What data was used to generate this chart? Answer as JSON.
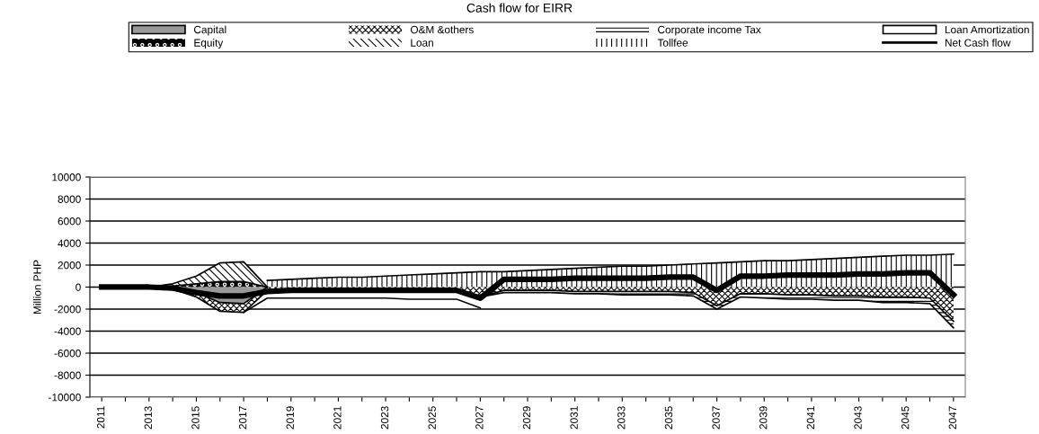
{
  "chart_data": {
    "type": "area",
    "title": "Cash flow for EIRR",
    "ylabel": "Million PHP",
    "categories": [
      "2011",
      null,
      "2013",
      null,
      "2015",
      null,
      "2017",
      null,
      "2019",
      null,
      "2021",
      null,
      "2023",
      null,
      "2025",
      null,
      "2027",
      null,
      "2029",
      null,
      "2031",
      null,
      "2033",
      null,
      "2035",
      null,
      "2037",
      null,
      "2039",
      null,
      "2041",
      null,
      "2043",
      null,
      "2045",
      null,
      "2047"
    ],
    "ylim": [
      -10000,
      10000
    ],
    "yticks": [
      -10000,
      -8000,
      -6000,
      -4000,
      -2000,
      0,
      2000,
      4000,
      6000,
      8000,
      10000
    ],
    "grid": "y",
    "legend": "top",
    "series": [
      {
        "name": "Tollfee",
        "color": "#ffffff",
        "values": [
          null,
          null,
          null,
          null,
          null,
          null,
          null,
          600,
          700,
          800,
          900,
          900,
          1000,
          1100,
          1200,
          1300,
          1400,
          1400,
          1500,
          1600,
          1700,
          1800,
          1900,
          1900,
          2000,
          2100,
          2200,
          2300,
          2400,
          2400,
          2500,
          2600,
          2700,
          2800,
          2900,
          2900,
          3000
        ]
      },
      {
        "name": "Loan",
        "color": "#ffffff",
        "values": [
          null,
          null,
          0,
          300,
          1000,
          2200,
          2300,
          0,
          null,
          null,
          null,
          null,
          null,
          null,
          null,
          null,
          null,
          null,
          null,
          null,
          null,
          null,
          null,
          null,
          null,
          null,
          null,
          null,
          null,
          null,
          null,
          null,
          null,
          null,
          null,
          null,
          null
        ]
      },
      {
        "name": "Equity",
        "color": "#000000",
        "values": [
          null,
          null,
          0,
          100,
          300,
          500,
          500,
          0,
          null,
          null,
          null,
          null,
          null,
          null,
          null,
          null,
          null,
          null,
          null,
          null,
          null,
          null,
          null,
          null,
          null,
          null,
          null,
          null,
          null,
          null,
          null,
          null,
          null,
          null,
          null,
          null,
          null
        ]
      },
      {
        "name": "Loan Amortization",
        "color": "#ffffff",
        "values": [
          null,
          null,
          null,
          null,
          null,
          null,
          -2300,
          -1000,
          -1000,
          -1000,
          -1000,
          -1000,
          -1000,
          -1100,
          -1100,
          -1100,
          -1900,
          null,
          null,
          null,
          null,
          null,
          null,
          null,
          null,
          null,
          null,
          null,
          null,
          null,
          null,
          null,
          null,
          null,
          null,
          null,
          null
        ]
      },
      {
        "name": "Corporate income Tax",
        "color": "#ffffff",
        "values": [
          null,
          null,
          null,
          null,
          null,
          null,
          null,
          null,
          null,
          null,
          null,
          null,
          null,
          null,
          null,
          null,
          -900,
          -500,
          -500,
          -500,
          -600,
          -600,
          -700,
          -700,
          -700,
          -800,
          -2000,
          -900,
          -1000,
          -1100,
          -1100,
          -1200,
          -1200,
          -1400,
          -1400,
          -1500,
          -3700
        ]
      },
      {
        "name": "O&M &others",
        "color": "#ffffff",
        "values": [
          0,
          0,
          0,
          -200,
          -900,
          -2200,
          -2300,
          -300,
          -300,
          -300,
          -300,
          -300,
          -300,
          -300,
          -300,
          -300,
          -900,
          -300,
          -300,
          -300,
          -400,
          -400,
          -400,
          -400,
          -400,
          -500,
          -1700,
          -600,
          -600,
          -700,
          -700,
          -800,
          -800,
          -900,
          -900,
          -1000,
          -3100
        ]
      },
      {
        "name": "Capital",
        "color": "#999999",
        "values": [
          null,
          null,
          0,
          -100,
          -500,
          -1400,
          -1500,
          0,
          null,
          null,
          null,
          null,
          null,
          null,
          null,
          null,
          null,
          null,
          null,
          null,
          null,
          null,
          null,
          null,
          null,
          null,
          null,
          null,
          null,
          null,
          null,
          null,
          null,
          null,
          null,
          null,
          null
        ]
      },
      {
        "name": "Net Cash flow",
        "type": "line",
        "color": "#000000",
        "values": [
          0,
          0,
          0,
          -100,
          -500,
          -800,
          -800,
          -400,
          -300,
          -300,
          -300,
          -300,
          -300,
          -300,
          -300,
          -300,
          -1000,
          700,
          700,
          700,
          800,
          800,
          800,
          800,
          900,
          900,
          -300,
          1000,
          1000,
          1100,
          1100,
          1100,
          1200,
          1200,
          1300,
          1300,
          -700
        ]
      }
    ]
  }
}
